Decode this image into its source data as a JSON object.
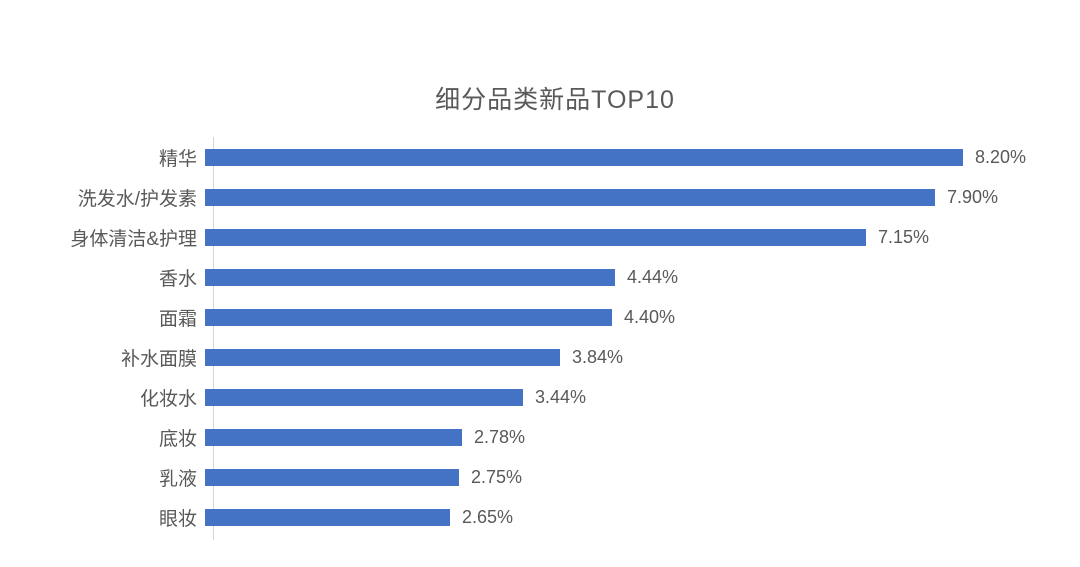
{
  "chart_data": {
    "type": "bar",
    "orientation": "horizontal",
    "title": "细分品类新品TOP10",
    "categories": [
      "精华",
      "洗发水/护发素",
      "身体清洁&护理",
      "香水",
      "面霜",
      "补水面膜",
      "化妆水",
      "底妆",
      "乳液",
      "眼妆"
    ],
    "values": [
      8.2,
      7.9,
      7.15,
      4.44,
      4.4,
      3.84,
      3.44,
      2.78,
      2.75,
      2.65
    ],
    "value_labels": [
      "8.20%",
      "7.90%",
      "7.15%",
      "4.44%",
      "4.40%",
      "3.84%",
      "3.44%",
      "2.78%",
      "2.75%",
      "2.65%"
    ],
    "xlabel": "",
    "ylabel": "",
    "xlim": [
      0,
      9.37
    ],
    "grid": false,
    "legend": false,
    "colors": {
      "bar": "#4472C4",
      "title_text": "#595959",
      "category_text": "#595959",
      "value_text": "#595959",
      "axis_line": "#D6D6D6",
      "background": "#FFFFFF"
    }
  }
}
